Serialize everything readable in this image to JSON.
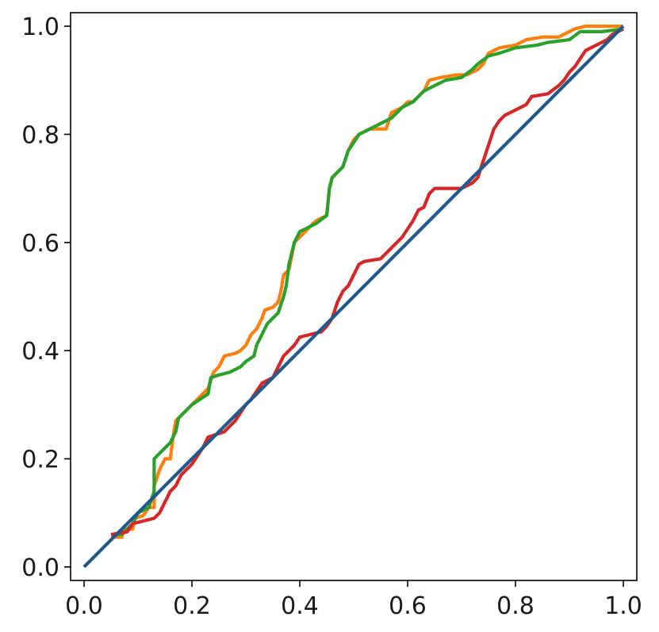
{
  "chart_data": {
    "type": "line",
    "title": "",
    "xlabel": "",
    "ylabel": "",
    "xlim": [
      -0.025,
      1.025
    ],
    "ylim": [
      -0.025,
      1.025
    ],
    "grid": false,
    "legend": "none",
    "x_ticks": [
      "0.0",
      "0.2",
      "0.4",
      "0.6",
      "0.8",
      "1.0"
    ],
    "y_ticks": [
      "0.0",
      "0.2",
      "0.4",
      "0.6",
      "0.8",
      "1.0"
    ],
    "x_tick_values": [
      0,
      0.2,
      0.4,
      0.6,
      0.8,
      1.0
    ],
    "y_tick_values": [
      0,
      0.2,
      0.4,
      0.6,
      0.8,
      1.0
    ],
    "series": [
      {
        "color": "#ff7f0e",
        "points": [
          [
            0.05,
            0.055
          ],
          [
            0.07,
            0.055
          ],
          [
            0.075,
            0.07
          ],
          [
            0.09,
            0.07
          ],
          [
            0.095,
            0.09
          ],
          [
            0.11,
            0.095
          ],
          [
            0.12,
            0.11
          ],
          [
            0.13,
            0.11
          ],
          [
            0.13,
            0.15
          ],
          [
            0.14,
            0.18
          ],
          [
            0.15,
            0.2
          ],
          [
            0.16,
            0.2
          ],
          [
            0.165,
            0.24
          ],
          [
            0.17,
            0.27
          ],
          [
            0.19,
            0.29
          ],
          [
            0.21,
            0.31
          ],
          [
            0.23,
            0.33
          ],
          [
            0.24,
            0.36
          ],
          [
            0.25,
            0.37
          ],
          [
            0.26,
            0.39
          ],
          [
            0.28,
            0.395
          ],
          [
            0.29,
            0.4
          ],
          [
            0.3,
            0.41
          ],
          [
            0.31,
            0.43
          ],
          [
            0.32,
            0.44
          ],
          [
            0.33,
            0.46
          ],
          [
            0.335,
            0.475
          ],
          [
            0.35,
            0.48
          ],
          [
            0.36,
            0.49
          ],
          [
            0.365,
            0.51
          ],
          [
            0.37,
            0.54
          ],
          [
            0.38,
            0.55
          ],
          [
            0.39,
            0.6
          ],
          [
            0.4,
            0.61
          ],
          [
            0.41,
            0.62
          ],
          [
            0.43,
            0.64
          ],
          [
            0.45,
            0.65
          ],
          [
            0.455,
            0.7
          ],
          [
            0.46,
            0.72
          ],
          [
            0.48,
            0.74
          ],
          [
            0.49,
            0.77
          ],
          [
            0.5,
            0.79
          ],
          [
            0.51,
            0.8
          ],
          [
            0.53,
            0.81
          ],
          [
            0.56,
            0.81
          ],
          [
            0.57,
            0.84
          ],
          [
            0.59,
            0.85
          ],
          [
            0.6,
            0.86
          ],
          [
            0.61,
            0.86
          ],
          [
            0.62,
            0.87
          ],
          [
            0.63,
            0.88
          ],
          [
            0.64,
            0.9
          ],
          [
            0.66,
            0.905
          ],
          [
            0.69,
            0.91
          ],
          [
            0.71,
            0.91
          ],
          [
            0.73,
            0.92
          ],
          [
            0.74,
            0.93
          ],
          [
            0.75,
            0.95
          ],
          [
            0.77,
            0.96
          ],
          [
            0.8,
            0.965
          ],
          [
            0.82,
            0.975
          ],
          [
            0.85,
            0.98
          ],
          [
            0.88,
            0.98
          ],
          [
            0.89,
            0.985
          ],
          [
            0.91,
            0.995
          ],
          [
            0.93,
            1.0
          ],
          [
            1.0,
            1.0
          ]
        ]
      },
      {
        "color": "#2ca02c",
        "points": [
          [
            0.05,
            0.06
          ],
          [
            0.07,
            0.06
          ],
          [
            0.08,
            0.07
          ],
          [
            0.09,
            0.08
          ],
          [
            0.1,
            0.1
          ],
          [
            0.12,
            0.11
          ],
          [
            0.13,
            0.14
          ],
          [
            0.13,
            0.2
          ],
          [
            0.14,
            0.21
          ],
          [
            0.15,
            0.22
          ],
          [
            0.16,
            0.23
          ],
          [
            0.17,
            0.25
          ],
          [
            0.175,
            0.275
          ],
          [
            0.2,
            0.3
          ],
          [
            0.23,
            0.32
          ],
          [
            0.235,
            0.35
          ],
          [
            0.25,
            0.355
          ],
          [
            0.27,
            0.36
          ],
          [
            0.29,
            0.37
          ],
          [
            0.3,
            0.38
          ],
          [
            0.315,
            0.39
          ],
          [
            0.32,
            0.41
          ],
          [
            0.33,
            0.43
          ],
          [
            0.34,
            0.45
          ],
          [
            0.36,
            0.47
          ],
          [
            0.37,
            0.5
          ],
          [
            0.375,
            0.52
          ],
          [
            0.38,
            0.56
          ],
          [
            0.39,
            0.6
          ],
          [
            0.4,
            0.62
          ],
          [
            0.42,
            0.63
          ],
          [
            0.43,
            0.635
          ],
          [
            0.45,
            0.65
          ],
          [
            0.455,
            0.7
          ],
          [
            0.46,
            0.72
          ],
          [
            0.47,
            0.73
          ],
          [
            0.48,
            0.74
          ],
          [
            0.49,
            0.77
          ],
          [
            0.5,
            0.785
          ],
          [
            0.51,
            0.8
          ],
          [
            0.53,
            0.81
          ],
          [
            0.55,
            0.82
          ],
          [
            0.57,
            0.83
          ],
          [
            0.58,
            0.84
          ],
          [
            0.59,
            0.85
          ],
          [
            0.61,
            0.86
          ],
          [
            0.62,
            0.87
          ],
          [
            0.63,
            0.88
          ],
          [
            0.65,
            0.89
          ],
          [
            0.67,
            0.9
          ],
          [
            0.7,
            0.905
          ],
          [
            0.72,
            0.92
          ],
          [
            0.73,
            0.93
          ],
          [
            0.75,
            0.945
          ],
          [
            0.77,
            0.95
          ],
          [
            0.8,
            0.96
          ],
          [
            0.84,
            0.965
          ],
          [
            0.86,
            0.97
          ],
          [
            0.9,
            0.975
          ],
          [
            0.92,
            0.99
          ],
          [
            0.96,
            0.99
          ],
          [
            1.0,
            0.995
          ]
        ]
      },
      {
        "color": "#d62728",
        "points": [
          [
            0.05,
            0.06
          ],
          [
            0.08,
            0.065
          ],
          [
            0.09,
            0.08
          ],
          [
            0.11,
            0.085
          ],
          [
            0.13,
            0.09
          ],
          [
            0.14,
            0.1
          ],
          [
            0.15,
            0.12
          ],
          [
            0.16,
            0.14
          ],
          [
            0.17,
            0.15
          ],
          [
            0.18,
            0.17
          ],
          [
            0.2,
            0.19
          ],
          [
            0.22,
            0.22
          ],
          [
            0.23,
            0.24
          ],
          [
            0.26,
            0.25
          ],
          [
            0.27,
            0.26
          ],
          [
            0.28,
            0.27
          ],
          [
            0.3,
            0.3
          ],
          [
            0.31,
            0.31
          ],
          [
            0.33,
            0.34
          ],
          [
            0.35,
            0.35
          ],
          [
            0.36,
            0.37
          ],
          [
            0.37,
            0.39
          ],
          [
            0.39,
            0.41
          ],
          [
            0.4,
            0.425
          ],
          [
            0.42,
            0.43
          ],
          [
            0.44,
            0.435
          ],
          [
            0.45,
            0.445
          ],
          [
            0.46,
            0.46
          ],
          [
            0.47,
            0.49
          ],
          [
            0.48,
            0.51
          ],
          [
            0.49,
            0.52
          ],
          [
            0.5,
            0.54
          ],
          [
            0.51,
            0.56
          ],
          [
            0.52,
            0.565
          ],
          [
            0.55,
            0.57
          ],
          [
            0.56,
            0.58
          ],
          [
            0.57,
            0.59
          ],
          [
            0.58,
            0.6
          ],
          [
            0.59,
            0.61
          ],
          [
            0.6,
            0.625
          ],
          [
            0.61,
            0.64
          ],
          [
            0.62,
            0.66
          ],
          [
            0.63,
            0.665
          ],
          [
            0.64,
            0.69
          ],
          [
            0.65,
            0.7
          ],
          [
            0.67,
            0.7
          ],
          [
            0.7,
            0.7
          ],
          [
            0.72,
            0.71
          ],
          [
            0.73,
            0.72
          ],
          [
            0.74,
            0.75
          ],
          [
            0.75,
            0.78
          ],
          [
            0.76,
            0.81
          ],
          [
            0.77,
            0.825
          ],
          [
            0.78,
            0.835
          ],
          [
            0.8,
            0.845
          ],
          [
            0.82,
            0.855
          ],
          [
            0.83,
            0.87
          ],
          [
            0.86,
            0.875
          ],
          [
            0.88,
            0.89
          ],
          [
            0.89,
            0.9
          ],
          [
            0.9,
            0.915
          ],
          [
            0.91,
            0.925
          ],
          [
            0.92,
            0.94
          ],
          [
            0.93,
            0.955
          ],
          [
            0.95,
            0.965
          ],
          [
            0.97,
            0.975
          ],
          [
            0.98,
            0.985
          ],
          [
            1.0,
            0.995
          ]
        ]
      },
      {
        "color": "#1f5a8a",
        "points": [
          [
            0.0,
            0.0
          ],
          [
            1.0,
            1.0
          ]
        ]
      }
    ]
  }
}
